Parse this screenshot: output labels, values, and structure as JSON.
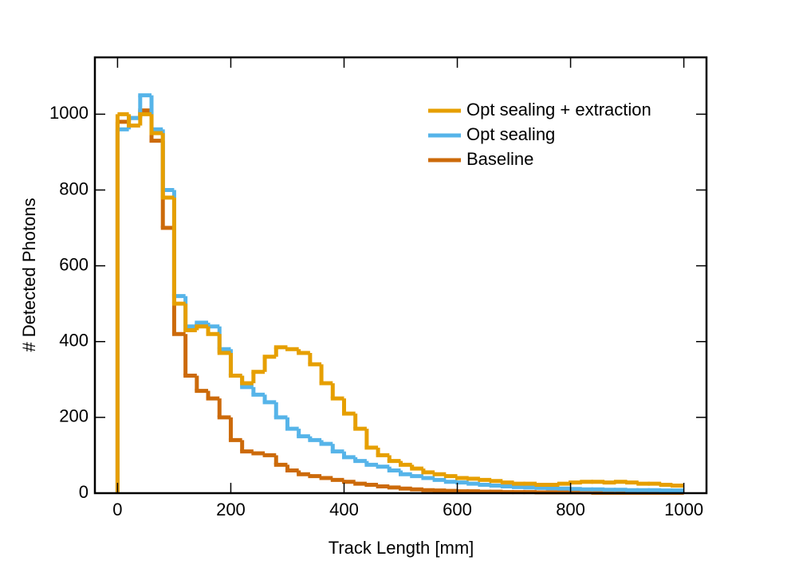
{
  "chart_data": {
    "type": "histogram",
    "xlabel": "Track Length [mm]",
    "ylabel": "# Detected Photons",
    "xlim": [
      -40,
      1040
    ],
    "ylim": [
      0,
      1150
    ],
    "xticks": [
      0,
      200,
      400,
      600,
      800,
      1000
    ],
    "yticks": [
      0,
      200,
      400,
      600,
      800,
      1000
    ],
    "legend": "upper right",
    "bins": [
      0,
      20,
      40,
      60,
      80,
      100,
      120,
      140,
      160,
      180,
      200,
      220,
      240,
      260,
      280,
      300,
      320,
      340,
      360,
      380,
      400,
      420,
      440,
      460,
      480,
      500,
      520,
      540,
      560,
      580,
      600,
      620,
      640,
      660,
      680,
      700,
      720,
      740,
      760,
      780,
      800,
      820,
      840,
      860,
      880,
      900,
      920,
      940,
      960,
      980,
      1000
    ],
    "series": [
      {
        "name": "Opt sealing + extraction",
        "color": "#e69f00",
        "values": [
          1000,
          970,
          1000,
          950,
          780,
          500,
          430,
          440,
          420,
          370,
          310,
          290,
          320,
          360,
          385,
          380,
          370,
          340,
          290,
          250,
          210,
          170,
          120,
          100,
          85,
          75,
          65,
          55,
          50,
          45,
          40,
          38,
          35,
          32,
          28,
          25,
          25,
          22,
          22,
          25,
          28,
          30,
          30,
          28,
          30,
          28,
          25,
          25,
          22,
          20
        ]
      },
      {
        "name": "Opt sealing",
        "color": "#56b4e9",
        "values": [
          960,
          990,
          1050,
          960,
          800,
          520,
          440,
          450,
          440,
          380,
          310,
          280,
          260,
          240,
          200,
          170,
          150,
          140,
          130,
          110,
          95,
          85,
          75,
          70,
          60,
          50,
          45,
          40,
          35,
          30,
          28,
          25,
          22,
          20,
          18,
          16,
          15,
          14,
          13,
          12,
          11,
          10,
          10,
          9,
          9,
          8,
          8,
          8,
          7,
          7
        ]
      },
      {
        "name": "Baseline",
        "color": "#cc6a0a",
        "values": [
          980,
          990,
          1010,
          930,
          700,
          420,
          310,
          270,
          250,
          200,
          140,
          110,
          105,
          100,
          75,
          60,
          50,
          45,
          40,
          35,
          30,
          25,
          22,
          18,
          15,
          12,
          10,
          8,
          7,
          6,
          5,
          5,
          4,
          4,
          3,
          3,
          3,
          2,
          2,
          2,
          2,
          2,
          1,
          1,
          1,
          1,
          1,
          1,
          1,
          1
        ]
      }
    ]
  }
}
